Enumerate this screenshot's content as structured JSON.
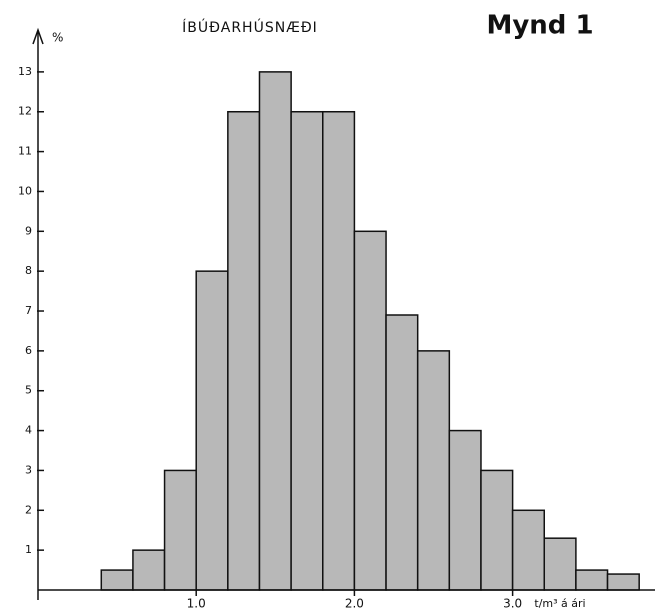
{
  "chart_data": {
    "type": "histogram",
    "title": "ÍBÚÐARHÚSNÆÐI",
    "subtitle": "Mynd 1",
    "ylabel": "%",
    "xlabel": "t/m³ á ári",
    "bins": [
      0.4,
      0.6,
      0.8,
      1.0,
      1.2,
      1.4,
      1.6,
      1.8,
      2.0,
      2.2,
      2.4,
      2.6,
      2.8,
      3.0,
      3.2,
      3.4,
      3.6,
      3.8
    ],
    "values": [
      0.5,
      1,
      3,
      8,
      12,
      13,
      12,
      12,
      9,
      6.9,
      6,
      4,
      3,
      2,
      1.3,
      0.5,
      0.4
    ],
    "color": "#b8b8b8",
    "xlim": [
      0,
      3.9
    ],
    "ylim": [
      0,
      13.8
    ],
    "xticks": [
      {
        "value": 1,
        "label": "1.0"
      },
      {
        "value": 2,
        "label": "2.0"
      },
      {
        "value": 3,
        "label": "3.0"
      }
    ],
    "yticks": [
      1,
      2,
      3,
      4,
      5,
      6,
      7,
      8,
      9,
      10,
      11,
      12,
      13
    ]
  }
}
